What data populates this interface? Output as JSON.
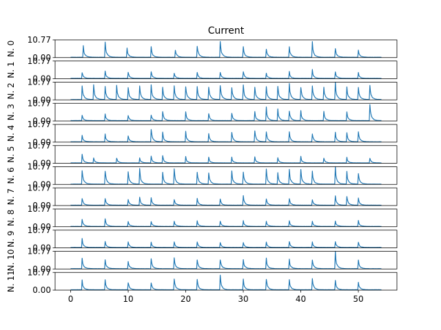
{
  "chart_data": {
    "type": "line",
    "title": "Current",
    "x_ticks": [
      "0",
      "10",
      "20",
      "30",
      "40",
      "50"
    ],
    "x_tick_values": [
      0,
      10,
      20,
      30,
      40,
      50
    ],
    "xlim": [
      -2.7,
      56.7
    ],
    "ylim": [
      0.0,
      10.77
    ],
    "y_tick_labels": [
      "0.00",
      "10.77"
    ],
    "x_data_range": [
      0,
      54
    ],
    "line_color": "#1f77b4",
    "panels": [
      {
        "ylabel": "N. 0",
        "peaks": [
          [
            2.2,
            0.6
          ],
          [
            6.0,
            0.85
          ],
          [
            9.8,
            0.5
          ],
          [
            14.0,
            0.55
          ],
          [
            18.2,
            0.45
          ],
          [
            22.0,
            0.7
          ],
          [
            26.0,
            0.9
          ],
          [
            30.0,
            0.55
          ],
          [
            34.0,
            0.5
          ],
          [
            38.0,
            0.6
          ],
          [
            42.0,
            0.85
          ],
          [
            46.0,
            0.5
          ],
          [
            50.0,
            0.4
          ]
        ]
      },
      {
        "ylabel": "N. 1",
        "peaks": [
          [
            2.0,
            0.35
          ],
          [
            6.0,
            0.4
          ],
          [
            10.0,
            0.35
          ],
          [
            14.0,
            0.4
          ],
          [
            18.0,
            0.3
          ],
          [
            22.0,
            0.35
          ],
          [
            26.0,
            0.35
          ],
          [
            30.0,
            0.4
          ],
          [
            34.0,
            0.3
          ],
          [
            38.0,
            0.35
          ],
          [
            42.0,
            0.45
          ],
          [
            46.0,
            0.4
          ],
          [
            50.0,
            0.3
          ]
        ]
      },
      {
        "ylabel": "N. 2",
        "peaks": [
          [
            2.0,
            0.8
          ],
          [
            4.0,
            0.75
          ],
          [
            6.0,
            0.7
          ],
          [
            8.0,
            0.8
          ],
          [
            10.0,
            0.7
          ],
          [
            12.0,
            0.75
          ],
          [
            14.0,
            0.8
          ],
          [
            16.0,
            0.7
          ],
          [
            18.0,
            0.75
          ],
          [
            20.0,
            0.8
          ],
          [
            22.0,
            0.7
          ],
          [
            24.0,
            0.75
          ],
          [
            26.0,
            0.85
          ],
          [
            28.0,
            0.7
          ],
          [
            30.0,
            0.8
          ],
          [
            32.0,
            0.75
          ],
          [
            34.0,
            0.7
          ],
          [
            36.0,
            0.8
          ],
          [
            38.0,
            0.9
          ],
          [
            40.0,
            0.75
          ],
          [
            42.0,
            0.8
          ],
          [
            44.0,
            0.7
          ],
          [
            46.0,
            0.9
          ],
          [
            48.0,
            0.75
          ],
          [
            50.0,
            0.7
          ],
          [
            52.0,
            0.8
          ]
        ]
      },
      {
        "ylabel": "N. 3",
        "peaks": [
          [
            2.0,
            0.3
          ],
          [
            6.0,
            0.35
          ],
          [
            10.0,
            0.3
          ],
          [
            14.0,
            0.35
          ],
          [
            16.0,
            0.55
          ],
          [
            20.0,
            0.45
          ],
          [
            24.0,
            0.4
          ],
          [
            28.0,
            0.45
          ],
          [
            32.0,
            0.5
          ],
          [
            34.0,
            0.7
          ],
          [
            36.0,
            0.6
          ],
          [
            38.0,
            0.6
          ],
          [
            40.0,
            0.55
          ],
          [
            44.0,
            0.5
          ],
          [
            48.0,
            0.5
          ],
          [
            52.0,
            0.95
          ]
        ]
      },
      {
        "ylabel": "N. 4",
        "peaks": [
          [
            2.0,
            0.35
          ],
          [
            6.0,
            0.4
          ],
          [
            10.0,
            0.35
          ],
          [
            14.0,
            0.7
          ],
          [
            16.0,
            0.5
          ],
          [
            20.0,
            0.55
          ],
          [
            24.0,
            0.45
          ],
          [
            28.0,
            0.6
          ],
          [
            32.0,
            0.7
          ],
          [
            34.0,
            0.6
          ],
          [
            38.0,
            0.55
          ],
          [
            42.0,
            0.5
          ],
          [
            46.0,
            0.55
          ],
          [
            48.0,
            0.5
          ],
          [
            50.0,
            0.6
          ]
        ]
      },
      {
        "ylabel": "N. 5",
        "peaks": [
          [
            2.0,
            0.45
          ],
          [
            4.0,
            0.3
          ],
          [
            8.0,
            0.3
          ],
          [
            12.0,
            0.3
          ],
          [
            14.0,
            0.35
          ],
          [
            16.0,
            0.4
          ],
          [
            20.0,
            0.35
          ],
          [
            24.0,
            0.3
          ],
          [
            28.0,
            0.3
          ],
          [
            32.0,
            0.35
          ],
          [
            36.0,
            0.3
          ],
          [
            40.0,
            0.35
          ],
          [
            44.0,
            0.3
          ],
          [
            48.0,
            0.3
          ],
          [
            52.0,
            0.3
          ]
        ]
      },
      {
        "ylabel": "N. 6",
        "peaks": [
          [
            2.0,
            0.85
          ],
          [
            6.0,
            0.8
          ],
          [
            10.0,
            0.75
          ],
          [
            12.0,
            0.8
          ],
          [
            16.0,
            0.7
          ],
          [
            18.0,
            0.8
          ],
          [
            22.0,
            0.75
          ],
          [
            24.0,
            0.7
          ],
          [
            28.0,
            0.7
          ],
          [
            30.0,
            0.75
          ],
          [
            34.0,
            0.8
          ],
          [
            36.0,
            0.7
          ],
          [
            38.0,
            0.8
          ],
          [
            40.0,
            0.85
          ],
          [
            42.0,
            0.7
          ],
          [
            46.0,
            0.9
          ],
          [
            48.0,
            0.65
          ],
          [
            50.0,
            0.65
          ]
        ]
      },
      {
        "ylabel": "N. 7",
        "peaks": [
          [
            2.0,
            0.4
          ],
          [
            6.0,
            0.4
          ],
          [
            10.0,
            0.35
          ],
          [
            12.0,
            0.45
          ],
          [
            14.0,
            0.4
          ],
          [
            18.0,
            0.35
          ],
          [
            22.0,
            0.4
          ],
          [
            26.0,
            0.35
          ],
          [
            30.0,
            0.55
          ],
          [
            34.0,
            0.4
          ],
          [
            38.0,
            0.4
          ],
          [
            42.0,
            0.35
          ],
          [
            46.0,
            0.5
          ],
          [
            48.0,
            0.55
          ],
          [
            50.0,
            0.4
          ]
        ]
      },
      {
        "ylabel": "N. 8",
        "peaks": [
          [
            2.0,
            0.4
          ],
          [
            6.0,
            0.45
          ],
          [
            10.0,
            0.3
          ],
          [
            14.0,
            0.3
          ],
          [
            18.0,
            0.3
          ],
          [
            22.0,
            0.3
          ],
          [
            26.0,
            0.3
          ],
          [
            30.0,
            0.3
          ],
          [
            34.0,
            0.3
          ],
          [
            38.0,
            0.3
          ],
          [
            42.0,
            0.3
          ],
          [
            46.0,
            0.3
          ],
          [
            50.0,
            0.3
          ]
        ]
      },
      {
        "ylabel": "N. 9",
        "peaks": [
          [
            2.0,
            0.5
          ],
          [
            6.0,
            0.35
          ],
          [
            10.0,
            0.35
          ],
          [
            14.0,
            0.3
          ],
          [
            18.0,
            0.3
          ],
          [
            22.0,
            0.35
          ],
          [
            26.0,
            0.3
          ],
          [
            30.0,
            0.3
          ],
          [
            34.0,
            0.3
          ],
          [
            38.0,
            0.35
          ],
          [
            42.0,
            0.3
          ],
          [
            46.0,
            0.35
          ],
          [
            50.0,
            0.3
          ]
        ]
      },
      {
        "ylabel": "N. 10",
        "peaks": [
          [
            2.0,
            0.55
          ],
          [
            6.0,
            0.5
          ],
          [
            10.0,
            0.45
          ],
          [
            14.0,
            0.5
          ],
          [
            18.0,
            0.55
          ],
          [
            22.0,
            0.5
          ],
          [
            26.0,
            0.55
          ],
          [
            30.0,
            0.5
          ],
          [
            34.0,
            0.55
          ],
          [
            38.0,
            0.5
          ],
          [
            42.0,
            0.55
          ],
          [
            46.0,
            0.9
          ],
          [
            50.0,
            0.45
          ]
        ]
      },
      {
        "ylabel": "N. 11",
        "peaks": [
          [
            2.0,
            0.5
          ],
          [
            6.0,
            0.55
          ],
          [
            10.0,
            0.45
          ],
          [
            14.0,
            0.4
          ],
          [
            18.0,
            0.65
          ],
          [
            22.0,
            0.55
          ],
          [
            26.0,
            0.75
          ],
          [
            30.0,
            0.55
          ],
          [
            34.0,
            0.65
          ],
          [
            38.0,
            0.6
          ],
          [
            42.0,
            0.65
          ],
          [
            46.0,
            0.5
          ],
          [
            50.0,
            0.45
          ]
        ]
      }
    ]
  }
}
